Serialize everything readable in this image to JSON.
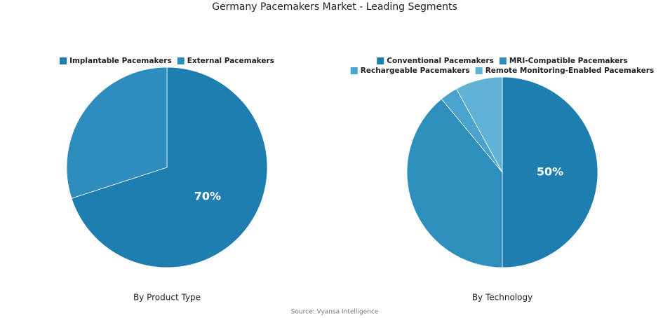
{
  "title": "Germany Pacemakers Market - Leading Segments",
  "source": "Source: Vyansa Intelligence",
  "chart_data": [
    {
      "type": "pie",
      "subtitle": "By Product Type",
      "categories": [
        "Implantable Pacemakers",
        "External Pacemakers"
      ],
      "values": [
        70,
        30
      ],
      "value_labels": [
        "70%",
        null
      ],
      "colors": [
        "#1f7eb0",
        "#2e8dbc"
      ]
    },
    {
      "type": "pie",
      "subtitle": "By Technology",
      "categories": [
        "Conventional Pacemakers",
        "MRI-Compatible Pacemakers",
        "Rechargeable Pacemakers",
        "Remote Monitoring-Enabled Pacemakers"
      ],
      "values": [
        50,
        39,
        3,
        8
      ],
      "value_labels": [
        "50%",
        null,
        null,
        null
      ],
      "colors": [
        "#1f7eb0",
        "#2e8fbd",
        "#4aa3cc",
        "#62b2d5"
      ]
    }
  ]
}
